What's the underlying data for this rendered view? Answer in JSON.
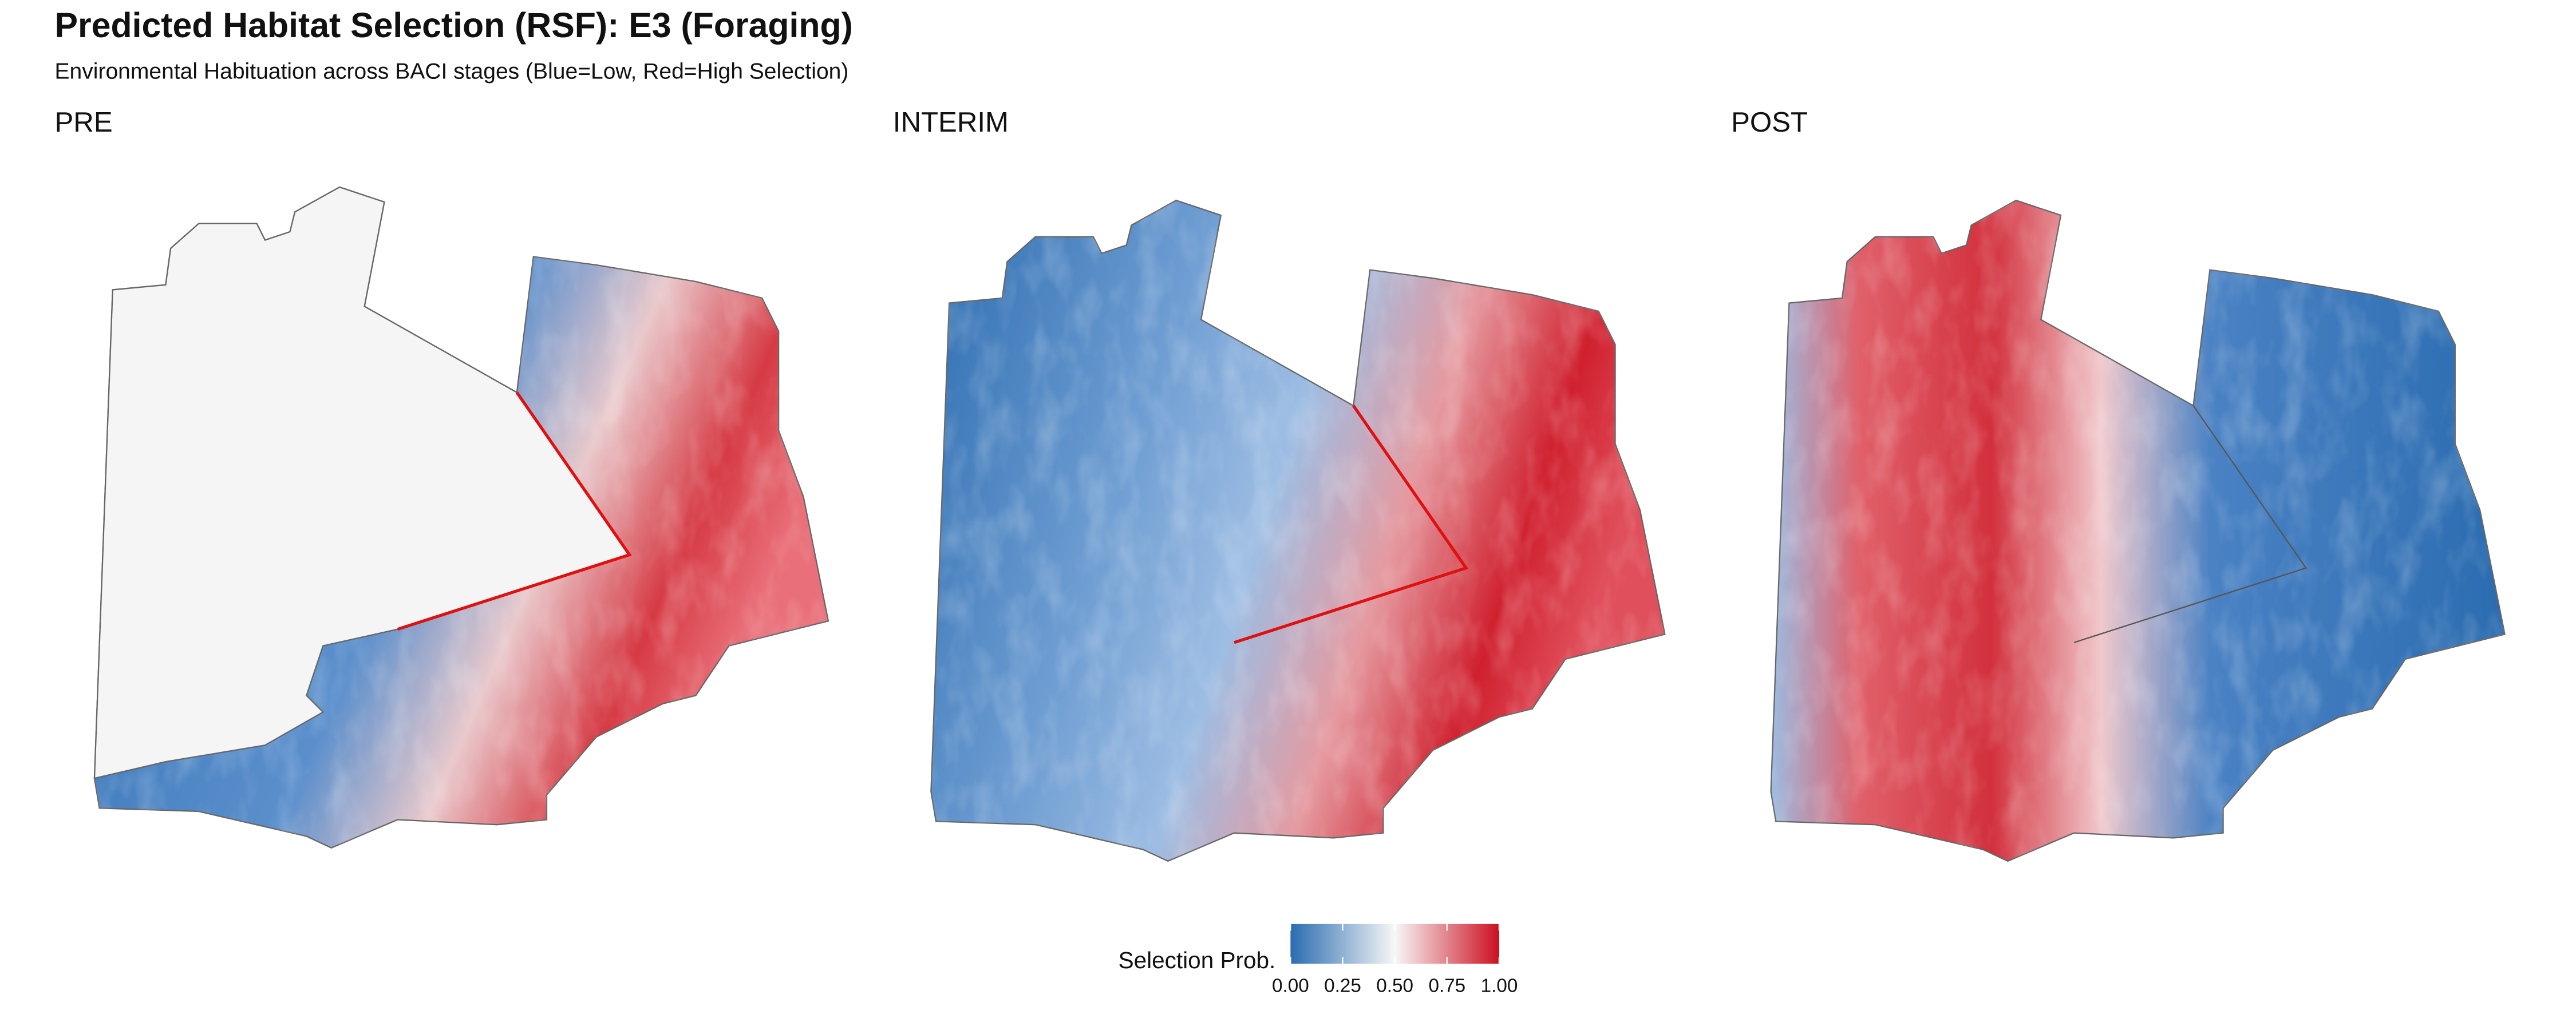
{
  "title": "Predicted Habitat Selection (RSF): E3 (Foraging)",
  "subtitle": "Environmental Habituation across BACI stages (Blue=Low, Red=High Selection)",
  "panels": [
    {
      "label": "PRE"
    },
    {
      "label": "INTERIM"
    },
    {
      "label": "POST"
    }
  ],
  "legend": {
    "title": "Selection Prob.",
    "limits": [
      0,
      1
    ],
    "colors": [
      "#2b6cb0",
      "#f7f7f7",
      "#cc1020"
    ],
    "ticks": [
      {
        "value": 0,
        "label": "0.00"
      },
      {
        "value": 0.25,
        "label": "0.25"
      },
      {
        "value": 0.5,
        "label": "0.50"
      },
      {
        "value": 0.75,
        "label": "0.75"
      },
      {
        "value": 1,
        "label": "1.00"
      }
    ]
  }
}
